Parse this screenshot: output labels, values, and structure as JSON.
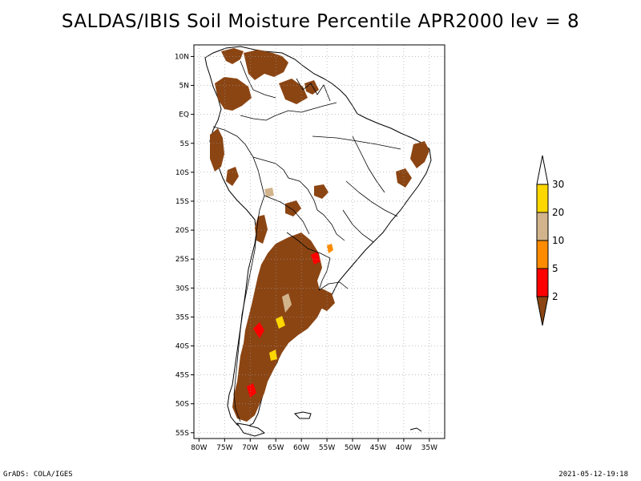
{
  "title": "SALDAS/IBIS Soil Moisture Percentile APR2000 lev = 8",
  "footer": {
    "left": "GrADS: COLA/IGES",
    "right": "2021-05-12-19:18"
  },
  "map": {
    "region": "South America",
    "lon_range": [
      -81,
      -32
    ],
    "lat_range": [
      -56,
      12
    ],
    "lat_ticks": [
      {
        "value": 10,
        "label": "10N"
      },
      {
        "value": 5,
        "label": "5N"
      },
      {
        "value": 0,
        "label": "EQ"
      },
      {
        "value": -5,
        "label": "5S"
      },
      {
        "value": -10,
        "label": "10S"
      },
      {
        "value": -15,
        "label": "15S"
      },
      {
        "value": -20,
        "label": "20S"
      },
      {
        "value": -25,
        "label": "25S"
      },
      {
        "value": -30,
        "label": "30S"
      },
      {
        "value": -35,
        "label": "35S"
      },
      {
        "value": -40,
        "label": "40S"
      },
      {
        "value": -45,
        "label": "45S"
      },
      {
        "value": -50,
        "label": "50S"
      },
      {
        "value": -55,
        "label": "55S"
      }
    ],
    "lon_ticks": [
      {
        "value": -80,
        "label": "80W"
      },
      {
        "value": -75,
        "label": "75W"
      },
      {
        "value": -70,
        "label": "70W"
      },
      {
        "value": -65,
        "label": "65W"
      },
      {
        "value": -60,
        "label": "60W"
      },
      {
        "value": -55,
        "label": "55W"
      },
      {
        "value": -50,
        "label": "50W"
      },
      {
        "value": -45,
        "label": "45W"
      },
      {
        "value": -40,
        "label": "40W"
      },
      {
        "value": -35,
        "label": "35W"
      }
    ]
  },
  "legend": {
    "bins": [
      {
        "range": "< 2",
        "color": "#8B4513"
      },
      {
        "range": "2-5",
        "color": "#FF0000"
      },
      {
        "range": "5-10",
        "color": "#FF8C00"
      },
      {
        "range": "10-20",
        "color": "#D2B48C"
      },
      {
        "range": "20-30",
        "color": "#FFD700"
      },
      {
        "range": "> 30",
        "color": "#FFFFFF"
      }
    ],
    "labels": [
      "2",
      "5",
      "10",
      "20",
      "30"
    ]
  }
}
